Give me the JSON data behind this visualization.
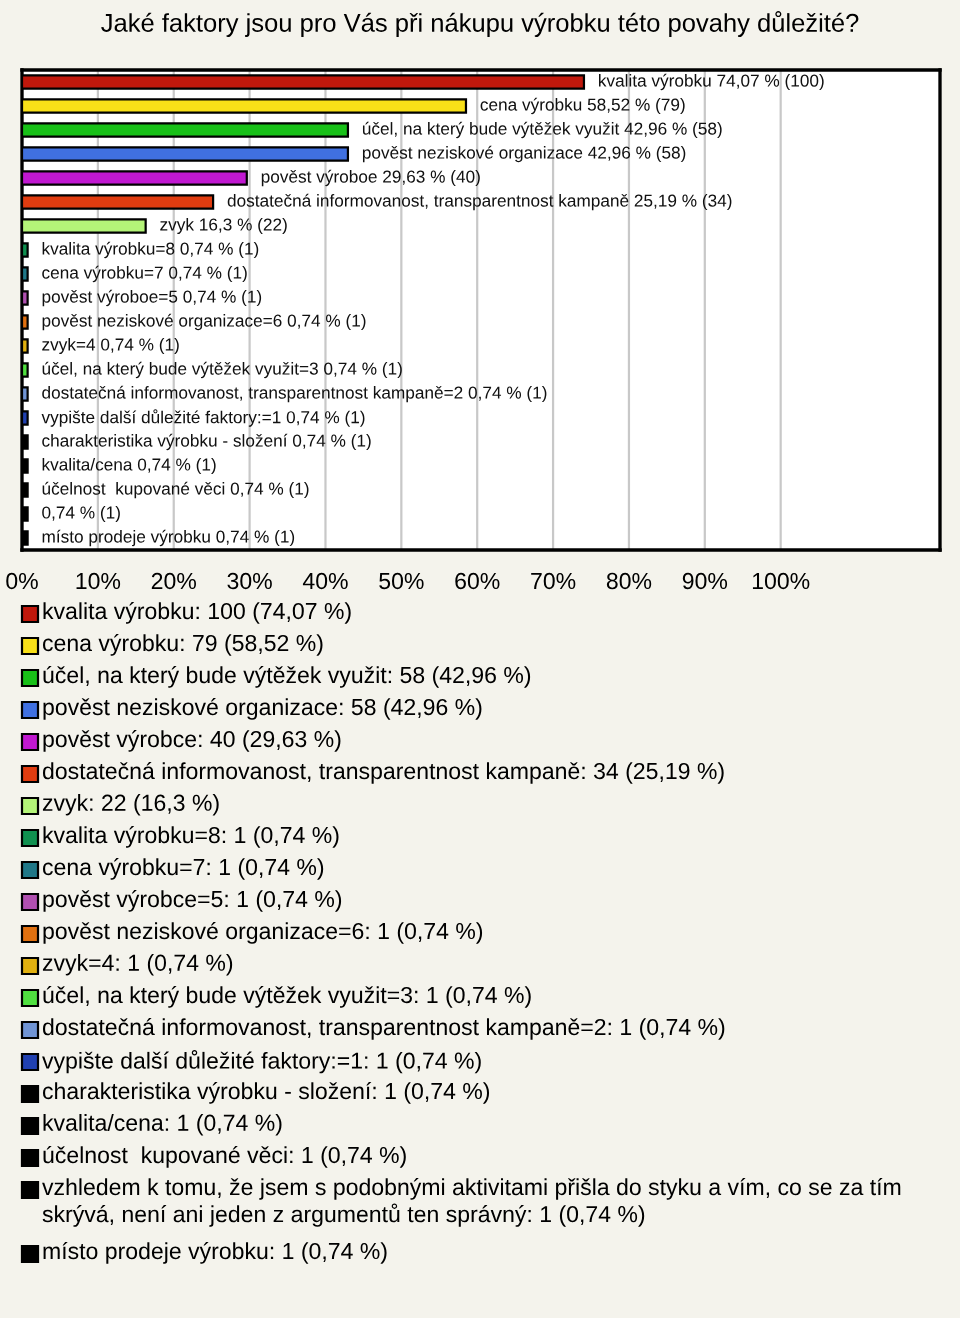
{
  "chart_data": {
    "type": "bar",
    "orientation": "horizontal",
    "title": "Jaké faktory jsou pro Vás při nákupu výrobku této povahy důležité?",
    "categories": [
      null,
      null,
      null,
      null,
      null,
      null,
      null,
      null,
      null,
      null,
      null,
      null,
      null,
      null,
      null,
      null,
      null,
      null,
      null,
      null
    ],
    "series": [
      {
        "name": "kvalita výrobku: 100 (74,07 %)",
        "color": "#c0180c",
        "values": [
          74.07,
          null,
          null,
          null,
          null,
          null,
          null,
          null,
          null,
          null,
          null,
          null,
          null,
          null,
          null,
          null,
          null,
          null,
          null,
          null
        ],
        "value_labels": [
          "kvalita výrobku 74,07 % (100)",
          null,
          null,
          null,
          null,
          null,
          null,
          null,
          null,
          null,
          null,
          null,
          null,
          null,
          null,
          null,
          null,
          null,
          null,
          null
        ]
      },
      {
        "name": "cena výrobku: 79 (58,52 %)",
        "color": "#f8e018",
        "values": [
          null,
          58.52,
          null,
          null,
          null,
          null,
          null,
          null,
          null,
          null,
          null,
          null,
          null,
          null,
          null,
          null,
          null,
          null,
          null,
          null
        ],
        "value_labels": [
          null,
          "cena výrobku 58,52 % (79)",
          null,
          null,
          null,
          null,
          null,
          null,
          null,
          null,
          null,
          null,
          null,
          null,
          null,
          null,
          null,
          null,
          null,
          null
        ]
      },
      {
        "name": "účel, na který bude výtěžek využit: 58 (42,96 %)",
        "color": "#18c018",
        "values": [
          null,
          null,
          42.96,
          null,
          null,
          null,
          null,
          null,
          null,
          null,
          null,
          null,
          null,
          null,
          null,
          null,
          null,
          null,
          null,
          null
        ],
        "value_labels": [
          null,
          null,
          "účel, na který bude výtěžek využit 42,96 % (58)",
          null,
          null,
          null,
          null,
          null,
          null,
          null,
          null,
          null,
          null,
          null,
          null,
          null,
          null,
          null,
          null,
          null
        ]
      },
      {
        "name": "pověst neziskové organizace: 58 (42,96 %)",
        "color": "#4070e0",
        "values": [
          null,
          null,
          null,
          42.96,
          null,
          null,
          null,
          null,
          null,
          null,
          null,
          null,
          null,
          null,
          null,
          null,
          null,
          null,
          null,
          null
        ],
        "value_labels": [
          null,
          null,
          null,
          "pověst neziskové organizace 42,96 % (58)",
          null,
          null,
          null,
          null,
          null,
          null,
          null,
          null,
          null,
          null,
          null,
          null,
          null,
          null,
          null,
          null
        ]
      },
      {
        "name": "pověst výrobce: 40 (29,63 %)",
        "color": "#c018d0",
        "values": [
          null,
          null,
          null,
          null,
          29.63,
          null,
          null,
          null,
          null,
          null,
          null,
          null,
          null,
          null,
          null,
          null,
          null,
          null,
          null,
          null
        ],
        "value_labels": [
          null,
          null,
          null,
          null,
          "pověst výroboe 29,63 % (40)",
          null,
          null,
          null,
          null,
          null,
          null,
          null,
          null,
          null,
          null,
          null,
          null,
          null,
          null,
          null
        ]
      },
      {
        "name": "dostatečná informovanost, transparentnost kampaně: 34 (25,19 %)",
        "color": "#e03c10",
        "values": [
          null,
          null,
          null,
          null,
          null,
          25.19,
          null,
          null,
          null,
          null,
          null,
          null,
          null,
          null,
          null,
          null,
          null,
          null,
          null,
          null
        ],
        "value_labels": [
          null,
          null,
          null,
          null,
          null,
          "dostatečná informovanost, transparentnost kampaně 25,19 % (34)",
          null,
          null,
          null,
          null,
          null,
          null,
          null,
          null,
          null,
          null,
          null,
          null,
          null,
          null
        ]
      },
      {
        "name": "zvyk: 22 (16,3 %)",
        "color": "#b4f478",
        "values": [
          null,
          null,
          null,
          null,
          null,
          null,
          16.3,
          null,
          null,
          null,
          null,
          null,
          null,
          null,
          null,
          null,
          null,
          null,
          null,
          null
        ],
        "value_labels": [
          null,
          null,
          null,
          null,
          null,
          null,
          "zvyk 16,3 % (22)",
          null,
          null,
          null,
          null,
          null,
          null,
          null,
          null,
          null,
          null,
          null,
          null,
          null
        ]
      },
      {
        "name": "kvalita výrobku=8: 1 (0,74 %)",
        "color": "#109050",
        "values": [
          null,
          null,
          null,
          null,
          null,
          null,
          null,
          0.74,
          null,
          null,
          null,
          null,
          null,
          null,
          null,
          null,
          null,
          null,
          null,
          null
        ],
        "value_labels": [
          null,
          null,
          null,
          null,
          null,
          null,
          null,
          "kvalita výrobku=8 0,74 % (1)",
          null,
          null,
          null,
          null,
          null,
          null,
          null,
          null,
          null,
          null,
          null,
          null
        ]
      },
      {
        "name": "cena výrobku=7: 1 (0,74 %)",
        "color": "#207888",
        "values": [
          null,
          null,
          null,
          null,
          null,
          null,
          null,
          null,
          0.74,
          null,
          null,
          null,
          null,
          null,
          null,
          null,
          null,
          null,
          null,
          null
        ],
        "value_labels": [
          null,
          null,
          null,
          null,
          null,
          null,
          null,
          null,
          "cena výrobku=7 0,74 % (1)",
          null,
          null,
          null,
          null,
          null,
          null,
          null,
          null,
          null,
          null,
          null
        ]
      },
      {
        "name": "pověst výrobce=5: 1 (0,74 %)",
        "color": "#b050b0",
        "values": [
          null,
          null,
          null,
          null,
          null,
          null,
          null,
          null,
          null,
          0.74,
          null,
          null,
          null,
          null,
          null,
          null,
          null,
          null,
          null,
          null
        ],
        "value_labels": [
          null,
          null,
          null,
          null,
          null,
          null,
          null,
          null,
          null,
          "pověst výroboe=5 0,74 % (1)",
          null,
          null,
          null,
          null,
          null,
          null,
          null,
          null,
          null,
          null
        ]
      },
      {
        "name": "pověst neziskové organizace=6: 1 (0,74 %)",
        "color": "#e07010",
        "values": [
          null,
          null,
          null,
          null,
          null,
          null,
          null,
          null,
          null,
          null,
          0.74,
          null,
          null,
          null,
          null,
          null,
          null,
          null,
          null,
          null
        ],
        "value_labels": [
          null,
          null,
          null,
          null,
          null,
          null,
          null,
          null,
          null,
          null,
          "pověst neziskové organizace=6 0,74 % (1)",
          null,
          null,
          null,
          null,
          null,
          null,
          null,
          null,
          null
        ]
      },
      {
        "name": "zvyk=4: 1 (0,74 %)",
        "color": "#e0b010",
        "values": [
          null,
          null,
          null,
          null,
          null,
          null,
          null,
          null,
          null,
          null,
          null,
          0.74,
          null,
          null,
          null,
          null,
          null,
          null,
          null,
          null
        ],
        "value_labels": [
          null,
          null,
          null,
          null,
          null,
          null,
          null,
          null,
          null,
          null,
          null,
          "zvyk=4 0,74 % (1)",
          null,
          null,
          null,
          null,
          null,
          null,
          null,
          null
        ]
      },
      {
        "name": "účel, na který bude výtěžek využit=3: 1 (0,74 %)",
        "color": "#50e040",
        "values": [
          null,
          null,
          null,
          null,
          null,
          null,
          null,
          null,
          null,
          null,
          null,
          null,
          0.74,
          null,
          null,
          null,
          null,
          null,
          null,
          null
        ],
        "value_labels": [
          null,
          null,
          null,
          null,
          null,
          null,
          null,
          null,
          null,
          null,
          null,
          null,
          "účel, na který bude výtěžek využit=3 0,74 % (1)",
          null,
          null,
          null,
          null,
          null,
          null,
          null
        ]
      },
      {
        "name": "dostatečná informovanost, transparentnost kampaně=2: 1 (0,74 %)",
        "color": "#7094d4",
        "values": [
          null,
          null,
          null,
          null,
          null,
          null,
          null,
          null,
          null,
          null,
          null,
          null,
          null,
          0.74,
          null,
          null,
          null,
          null,
          null,
          null
        ],
        "value_labels": [
          null,
          null,
          null,
          null,
          null,
          null,
          null,
          null,
          null,
          null,
          null,
          null,
          null,
          "dostatečná informovanost, transparentnost kampaně=2 0,74 % (1)",
          null,
          null,
          null,
          null,
          null,
          null
        ]
      },
      {
        "name": "vypište další důležité faktory:=1: 1 (0,74 %)",
        "color": "#2040b0",
        "values": [
          null,
          null,
          null,
          null,
          null,
          null,
          null,
          null,
          null,
          null,
          null,
          null,
          null,
          null,
          0.74,
          null,
          null,
          null,
          null,
          null
        ],
        "value_labels": [
          null,
          null,
          null,
          null,
          null,
          null,
          null,
          null,
          null,
          null,
          null,
          null,
          null,
          null,
          "vypište další důležité faktory:=1 0,74 % (1)",
          null,
          null,
          null,
          null,
          null
        ]
      },
      {
        "name": "charakteristika výrobku - složení: 1 (0,74 %)",
        "color": "#000000",
        "values": [
          null,
          null,
          null,
          null,
          null,
          null,
          null,
          null,
          null,
          null,
          null,
          null,
          null,
          null,
          null,
          0.74,
          null,
          null,
          null,
          null
        ],
        "value_labels": [
          null,
          null,
          null,
          null,
          null,
          null,
          null,
          null,
          null,
          null,
          null,
          null,
          null,
          null,
          null,
          "charakteristika výrobku - složení 0,74 % (1)",
          null,
          null,
          null,
          null
        ]
      },
      {
        "name": "kvalita/cena: 1 (0,74 %)",
        "color": "#000000",
        "values": [
          null,
          null,
          null,
          null,
          null,
          null,
          null,
          null,
          null,
          null,
          null,
          null,
          null,
          null,
          null,
          null,
          0.74,
          null,
          null,
          null
        ],
        "value_labels": [
          null,
          null,
          null,
          null,
          null,
          null,
          null,
          null,
          null,
          null,
          null,
          null,
          null,
          null,
          null,
          null,
          "kvalita/cena 0,74 % (1)",
          null,
          null,
          null
        ]
      },
      {
        "name": "účelnost  kupované věci: 1 (0,74 %)",
        "color": "#000000",
        "values": [
          null,
          null,
          null,
          null,
          null,
          null,
          null,
          null,
          null,
          null,
          null,
          null,
          null,
          null,
          null,
          null,
          null,
          0.74,
          null,
          null
        ],
        "value_labels": [
          null,
          null,
          null,
          null,
          null,
          null,
          null,
          null,
          null,
          null,
          null,
          null,
          null,
          null,
          null,
          null,
          null,
          "účelnost  kupované věci 0,74 % (1)",
          null,
          null
        ]
      },
      {
        "name": "vzhledem k tomu, že jsem s podobnými aktivitami přišla do styku a vím, co se za tím skrývá, není ani jeden z argumentů ten správný: 1 (0,74 %)",
        "color": "#000000",
        "values": [
          null,
          null,
          null,
          null,
          null,
          null,
          null,
          null,
          null,
          null,
          null,
          null,
          null,
          null,
          null,
          null,
          null,
          null,
          0.74,
          null
        ],
        "value_labels": [
          null,
          null,
          null,
          null,
          null,
          null,
          null,
          null,
          null,
          null,
          null,
          null,
          null,
          null,
          null,
          null,
          null,
          null,
          "0,74 % (1)",
          null
        ]
      },
      {
        "name": "místo prodeje výrobku: 1 (0,74 %)",
        "color": "#000000",
        "values": [
          null,
          null,
          null,
          null,
          null,
          null,
          null,
          null,
          null,
          null,
          null,
          null,
          null,
          null,
          null,
          null,
          null,
          null,
          null,
          0.74
        ],
        "value_labels": [
          null,
          null,
          null,
          null,
          null,
          null,
          null,
          null,
          null,
          null,
          null,
          null,
          null,
          null,
          null,
          null,
          null,
          null,
          null,
          "místo prodeje výrobku 0,74 % (1)"
        ]
      }
    ],
    "xlim": [
      0,
      121
    ],
    "xticks": [
      {
        "value": 0,
        "label": "0%"
      },
      {
        "value": 10,
        "label": "10%"
      },
      {
        "value": 20,
        "label": "20%"
      },
      {
        "value": 30,
        "label": "30%"
      },
      {
        "value": 40,
        "label": "40%"
      },
      {
        "value": 50,
        "label": "50%"
      },
      {
        "value": 60,
        "label": "60%"
      },
      {
        "value": 70,
        "label": "70%"
      },
      {
        "value": 80,
        "label": "80%"
      },
      {
        "value": 90,
        "label": "90%"
      },
      {
        "value": 100,
        "label": "100%"
      }
    ],
    "grid": "x",
    "legend": "bottom",
    "tick_labels": "x"
  }
}
